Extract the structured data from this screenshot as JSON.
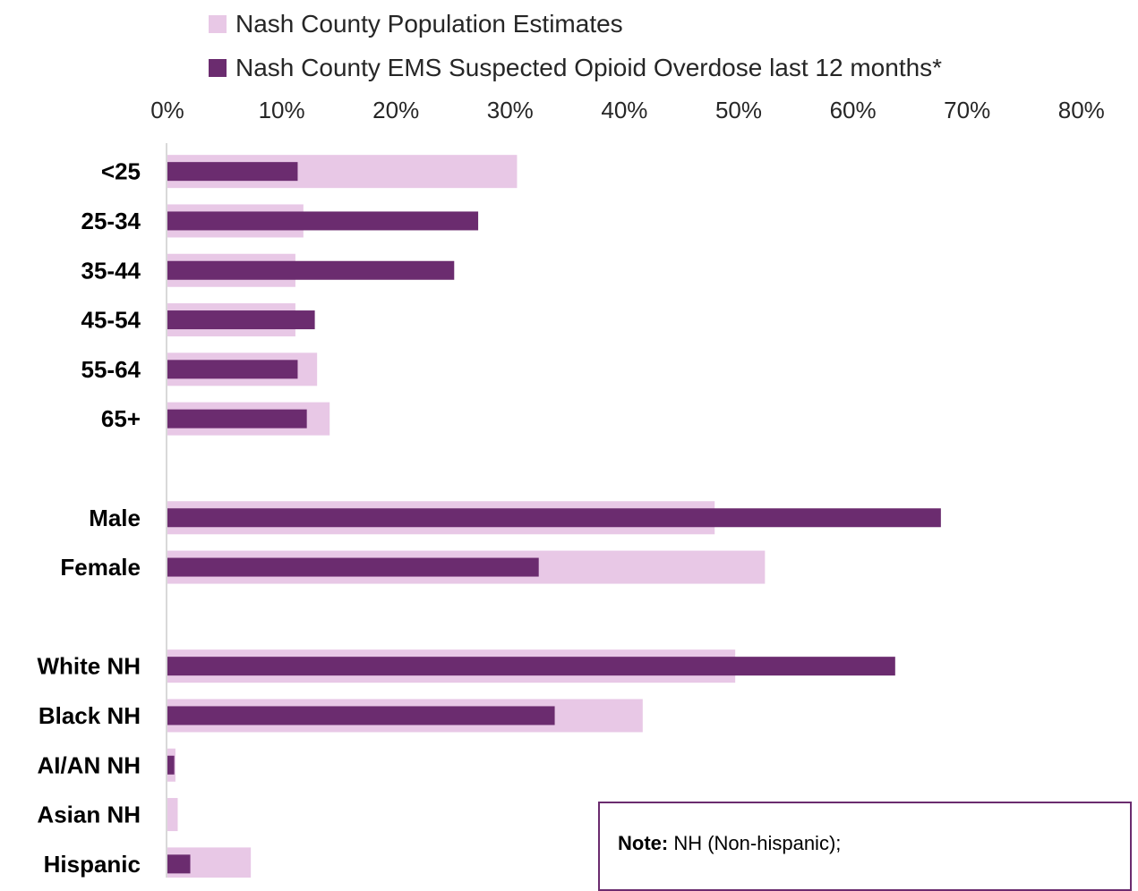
{
  "colors": {
    "population": "#e8c8e6",
    "ems": "#6b2c6f",
    "axis": "#d9d9d9"
  },
  "legend": {
    "population_label": "Nash County Population Estimates",
    "ems_label": "Nash County EMS Suspected Opioid Overdose last 12 months*"
  },
  "note": {
    "label": "Note:",
    "text": " NH (Non-hispanic);"
  },
  "chart_data": {
    "type": "bar",
    "orientation": "horizontal",
    "title": "",
    "x_axis_position": "top",
    "xlim": [
      0,
      80
    ],
    "x_ticks": [
      "0%",
      "10%",
      "20%",
      "30%",
      "40%",
      "50%",
      "60%",
      "70%",
      "80%"
    ],
    "categories": [
      "<25",
      "25-34",
      "35-44",
      "45-54",
      "55-64",
      "65+",
      "",
      "Male",
      "Female",
      "",
      "White NH",
      "Black NH",
      "AI/AN NH",
      "Asian NH",
      "Hispanic"
    ],
    "series": [
      {
        "name": "Nash County Population Estimates",
        "values": [
          30.6,
          11.9,
          11.2,
          11.2,
          13.1,
          14.2,
          null,
          47.9,
          52.3,
          null,
          49.7,
          41.6,
          0.7,
          0.9,
          7.3
        ]
      },
      {
        "name": "Nash County EMS Suspected Opioid Overdose last 12 months*",
        "values": [
          11.4,
          27.2,
          25.1,
          12.9,
          11.4,
          12.2,
          null,
          67.7,
          32.5,
          null,
          63.7,
          33.9,
          0.6,
          0.0,
          2.0
        ]
      }
    ],
    "grid": false,
    "legend_position": "top"
  }
}
